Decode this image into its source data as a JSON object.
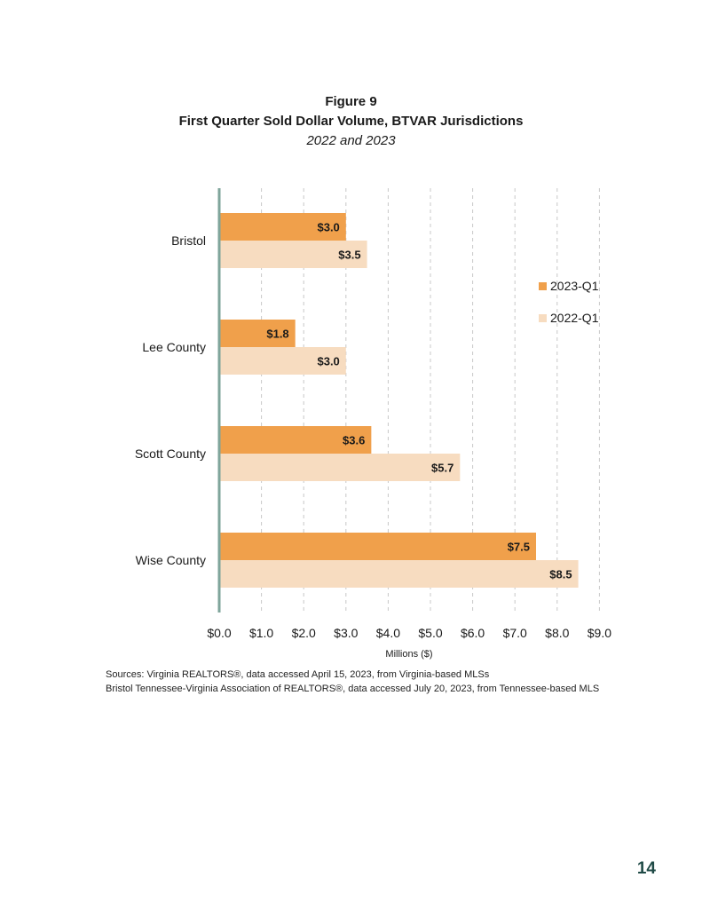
{
  "figure": {
    "label": "Figure 9",
    "title": "First Quarter Sold Dollar Volume, BTVAR Jurisdictions",
    "subtitle": "2022 and 2023"
  },
  "chart_data": {
    "type": "bar",
    "orientation": "horizontal",
    "categories": [
      "Bristol",
      "Lee County",
      "Scott County",
      "Wise County"
    ],
    "series": [
      {
        "name": "2023-Q1",
        "color": "#f0a04b",
        "values": [
          3.0,
          1.8,
          3.6,
          7.5
        ],
        "labels": [
          "$3.0",
          "$1.8",
          "$3.6",
          "$7.5"
        ]
      },
      {
        "name": "2022-Q1",
        "color": "#f7dcc0",
        "values": [
          3.5,
          3.0,
          5.7,
          8.5
        ],
        "labels": [
          "$3.5",
          "$3.0",
          "$5.7",
          "$8.5"
        ]
      }
    ],
    "xlabel": "Millions ($)",
    "xlim": [
      0,
      9
    ],
    "ticks": [
      "$0.0",
      "$1.0",
      "$2.0",
      "$3.0",
      "$4.0",
      "$5.0",
      "$6.0",
      "$7.0",
      "$8.0",
      "$9.0"
    ],
    "grid": "vertical dashed",
    "legend": "right"
  },
  "sources": {
    "line1": "Sources: Virginia REALTORS®, data accessed April 15, 2023, from Virginia-based MLSs",
    "line2": "Bristol Tennessee-Virginia Association of REALTORS®, data accessed July 20, 2023, from Tennessee-based MLS"
  },
  "page_number": "14"
}
